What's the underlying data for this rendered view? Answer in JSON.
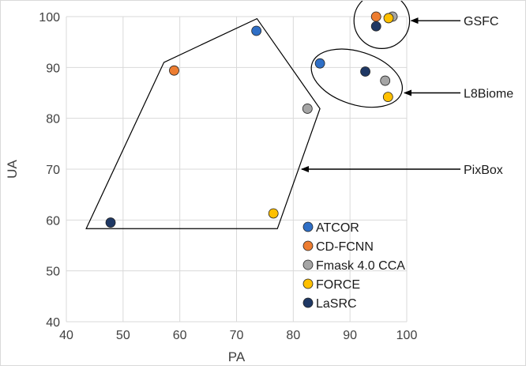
{
  "chart_data": {
    "type": "scatter",
    "xlabel": "PA",
    "ylabel": "UA",
    "xlim": [
      40,
      100
    ],
    "ylim": [
      40,
      100
    ],
    "x_ticks": [
      40,
      50,
      60,
      70,
      80,
      90,
      100
    ],
    "y_ticks": [
      40,
      50,
      60,
      70,
      80,
      90,
      100
    ],
    "grid": "on",
    "legend_position": "lower-right",
    "series": [
      {
        "name": "ATCOR",
        "color": "#2f6fc6",
        "points": [
          {
            "x": 73.5,
            "y": 97.2
          },
          {
            "x": 84.7,
            "y": 90.8
          }
        ]
      },
      {
        "name": "CD-FCNN",
        "color": "#ed7d31",
        "points": [
          {
            "x": 59.0,
            "y": 89.4
          },
          {
            "x": 94.6,
            "y": 100.0
          }
        ]
      },
      {
        "name": "Fmask 4.0 CCA",
        "color": "#a5a5a5",
        "points": [
          {
            "x": 82.5,
            "y": 81.9
          },
          {
            "x": 96.2,
            "y": 87.4
          },
          {
            "x": 97.5,
            "y": 100.0
          }
        ]
      },
      {
        "name": "FORCE",
        "color": "#ffc000",
        "points": [
          {
            "x": 76.5,
            "y": 61.3
          },
          {
            "x": 96.7,
            "y": 84.2
          },
          {
            "x": 96.8,
            "y": 99.7
          }
        ]
      },
      {
        "name": "LaSRC",
        "color": "#1f3864",
        "points": [
          {
            "x": 47.8,
            "y": 59.5
          },
          {
            "x": 92.7,
            "y": 89.2
          },
          {
            "x": 94.6,
            "y": 98.1
          }
        ]
      }
    ],
    "annotations": [
      {
        "label": "GSFC",
        "shape": "circle",
        "center": {
          "x": 95.6,
          "y": 99.2
        },
        "radius_x": 4.9
      },
      {
        "label": "L8Biome",
        "shape": "ellipse",
        "center": {
          "x": 91.2,
          "y": 87.9
        },
        "rx": 8.3,
        "ry": 5.2,
        "rotation_deg": 18
      },
      {
        "label": "PixBox",
        "shape": "polygon",
        "vertices": [
          {
            "x": 43.5,
            "y": 58.3
          },
          {
            "x": 57.2,
            "y": 91.0
          },
          {
            "x": 73.6,
            "y": 99.6
          },
          {
            "x": 84.7,
            "y": 81.9
          },
          {
            "x": 77.2,
            "y": 58.3
          }
        ]
      }
    ]
  }
}
